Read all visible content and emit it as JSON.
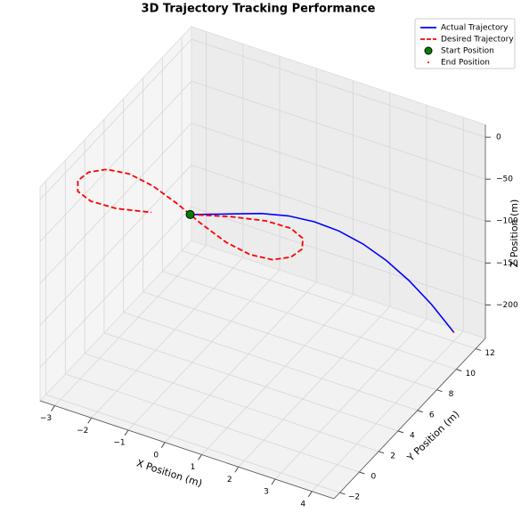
{
  "chart_data": {
    "type": "line3d",
    "title": "3D Trajectory Tracking Performance",
    "xlabel": "X Position (m)",
    "ylabel": "Y Position (m)",
    "zlabel": "Z Position (m)",
    "xlim": [
      -3.4,
      4.6
    ],
    "ylim": [
      -2.6,
      13
    ],
    "zlim": [
      -240,
      15
    ],
    "xticks": [
      {
        "value": -3,
        "label": "−3"
      },
      {
        "value": -2,
        "label": "−2"
      },
      {
        "value": -1,
        "label": "−1"
      },
      0,
      1,
      2,
      3,
      4
    ],
    "yticks": [
      {
        "value": -2,
        "label": "−2"
      },
      0,
      2,
      4,
      6,
      8,
      10,
      12
    ],
    "zticks": [
      0,
      {
        "value": -50,
        "label": "−50"
      },
      {
        "value": -100,
        "label": "−100"
      },
      {
        "value": -150,
        "label": "−150"
      },
      {
        "value": -200,
        "label": "−200"
      }
    ],
    "grid": true,
    "legend": "upper right",
    "series": [
      {
        "name": "Actual Trajectory",
        "color": "#0000ff",
        "style": "solid",
        "x": [
          0,
          0.8,
          1.3,
          1.72,
          2.11,
          2.46,
          2.8,
          3.12,
          3.42,
          3.72,
          4.0
        ],
        "y": [
          0,
          1.2,
          2.4,
          3.6,
          4.8,
          6.0,
          7.2,
          8.4,
          9.6,
          10.8,
          12.0
        ],
        "z": [
          0,
          -2.29,
          -9.16,
          -20.61,
          -36.64,
          -57.25,
          -82.44,
          -112.21,
          -146.56,
          -185.49,
          -229.0
        ]
      },
      {
        "name": "Desired Trajectory",
        "color": "#ff0000",
        "style": "dashed",
        "x": [
          0,
          0.89,
          1.69,
          2.35,
          2.8,
          2.99,
          2.92,
          2.59,
          2.03,
          1.28,
          0.42,
          -0.47,
          -1.33,
          -2.06,
          -2.61,
          -2.93,
          -2.99,
          -2.78,
          -2.32,
          -1.65,
          -0.84
        ],
        "y": [
          0,
          0.85,
          1.4,
          1.46,
          1.01,
          0.21,
          -0.66,
          -1.31,
          -1.49,
          -1.16,
          -0.42,
          0.47,
          1.19,
          1.5,
          1.28,
          0.62,
          -0.26,
          -1.06,
          -1.47,
          -1.38,
          -0.8
        ],
        "z": [
          0,
          0,
          0,
          0,
          0,
          0,
          0,
          0,
          0,
          0,
          0,
          0,
          0,
          0,
          0,
          0,
          0,
          0,
          0,
          0,
          0
        ]
      }
    ],
    "markers": [
      {
        "name": "Start Position",
        "color": "#008000",
        "x": 0,
        "y": 0,
        "z": 0
      },
      {
        "name": "End Position",
        "color": "#ff0000",
        "x": 4.0,
        "y": 12.0,
        "z": -229.0
      }
    ]
  }
}
